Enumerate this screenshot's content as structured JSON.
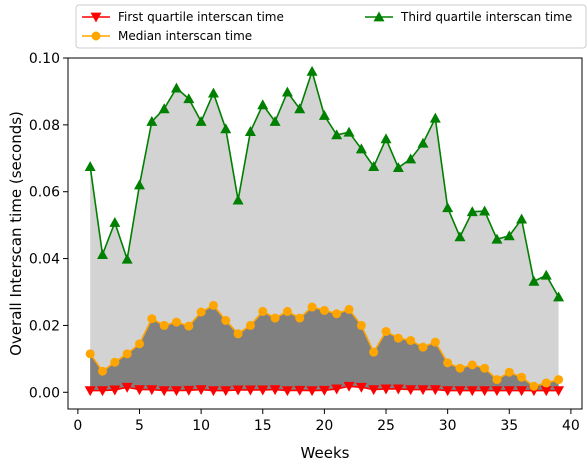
{
  "chart_data": {
    "type": "line",
    "title": "",
    "xlabel": "Weeks",
    "ylabel": "Overall Interscan time (seconds)",
    "xlim": [
      -0.8,
      40.9
    ],
    "ylim": [
      -0.005,
      0.1
    ],
    "xticks": [
      0,
      5,
      10,
      15,
      20,
      25,
      30,
      35,
      40
    ],
    "yticks": [
      0.0,
      0.02,
      0.04,
      0.06,
      0.08,
      0.1
    ],
    "ytick_labels": [
      "0.00",
      "0.02",
      "0.04",
      "0.06",
      "0.08",
      "0.10"
    ],
    "grid": false,
    "legend_position": "top",
    "x": [
      1,
      2,
      3,
      4,
      5,
      6,
      7,
      8,
      9,
      10,
      11,
      12,
      13,
      14,
      15,
      16,
      17,
      18,
      19,
      20,
      21,
      22,
      23,
      24,
      25,
      26,
      27,
      28,
      29,
      30,
      31,
      32,
      33,
      34,
      35,
      36,
      37,
      38,
      39
    ],
    "series": [
      {
        "name": "First quartile interscan time",
        "color": "#ff0000",
        "marker": "triangle-down",
        "values": [
          0.0005,
          0.0005,
          0.0007,
          0.0015,
          0.0008,
          0.0008,
          0.0005,
          0.0005,
          0.0006,
          0.0008,
          0.0005,
          0.0005,
          0.0007,
          0.0007,
          0.0007,
          0.0008,
          0.0005,
          0.0006,
          0.0005,
          0.0006,
          0.001,
          0.0018,
          0.0015,
          0.0008,
          0.001,
          0.001,
          0.0008,
          0.0008,
          0.0008,
          0.0005,
          0.0005,
          0.0005,
          0.0005,
          0.0005,
          0.0005,
          0.0005,
          0.0005,
          0.0005,
          0.0005
        ]
      },
      {
        "name": "Median interscan time",
        "color": "#ffa500",
        "marker": "circle",
        "values": [
          0.0115,
          0.0063,
          0.009,
          0.0115,
          0.0145,
          0.022,
          0.02,
          0.021,
          0.0198,
          0.024,
          0.026,
          0.0215,
          0.0175,
          0.02,
          0.0242,
          0.0222,
          0.0242,
          0.0222,
          0.0255,
          0.0245,
          0.0235,
          0.0248,
          0.02,
          0.012,
          0.0182,
          0.0162,
          0.0155,
          0.0135,
          0.015,
          0.0088,
          0.0072,
          0.0082,
          0.0072,
          0.0038,
          0.006,
          0.0045,
          0.0018,
          0.0028,
          0.0038
        ]
      },
      {
        "name": "Third quartile interscan time",
        "color": "#008000",
        "marker": "triangle-up",
        "values": [
          0.0675,
          0.0412,
          0.0508,
          0.0398,
          0.062,
          0.081,
          0.0848,
          0.091,
          0.0878,
          0.081,
          0.0895,
          0.0788,
          0.0575,
          0.078,
          0.086,
          0.081,
          0.0898,
          0.0848,
          0.096,
          0.0828,
          0.077,
          0.0778,
          0.0728,
          0.0675,
          0.0758,
          0.0672,
          0.0698,
          0.0745,
          0.082,
          0.0552,
          0.0465,
          0.054,
          0.0542,
          0.0458,
          0.0468,
          0.0518,
          0.0332,
          0.035,
          0.0285
        ]
      }
    ]
  }
}
